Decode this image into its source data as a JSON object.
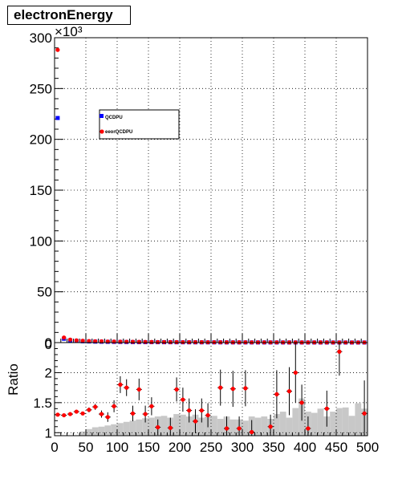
{
  "title": "electronEnergy",
  "colors": {
    "series_a": "#0000ff",
    "series_b": "#ff0000",
    "ratio_points": "#ff0000",
    "ratio_hist": "#c8c8c8",
    "frame": "#000000"
  },
  "chart_data": [
    {
      "type": "scatter",
      "title": "electronEnergy",
      "xlabel": "",
      "ylabel": "",
      "y_multiplier_label": "×10³",
      "xlim": [
        0,
        500
      ],
      "ylim": [
        0,
        300000
      ],
      "y_ticks": [
        0,
        50,
        100,
        150,
        200,
        250,
        300
      ],
      "x_tick_labels_visible": false,
      "grid": true,
      "legend_position": "upper-left",
      "x": [
        5,
        15,
        25,
        35,
        45,
        55,
        65,
        75,
        85,
        95,
        105,
        115,
        125,
        135,
        145,
        155,
        165,
        175,
        185,
        195,
        205,
        215,
        225,
        235,
        245,
        255,
        265,
        275,
        285,
        295,
        305,
        315,
        325,
        335,
        345,
        355,
        365,
        375,
        385,
        395,
        405,
        415,
        425,
        435,
        445,
        455,
        465,
        475,
        485,
        495
      ],
      "series": [
        {
          "name": "QCDPU",
          "color": "#0000ff",
          "values": [
            221000,
            3800,
            2200,
            1600,
            1300,
            1100,
            950,
            850,
            750,
            680,
            620,
            560,
            510,
            470,
            440,
            410,
            380,
            360,
            340,
            320,
            300,
            285,
            270,
            255,
            245,
            235,
            225,
            215,
            205,
            195,
            190,
            180,
            175,
            168,
            160,
            155,
            150,
            145,
            140,
            135,
            130,
            126,
            122,
            118,
            115,
            112,
            109,
            106,
            103,
            100
          ]
        },
        {
          "name": "eeorQCDPU",
          "color": "#ff0000",
          "values": [
            288000,
            5000,
            2900,
            2200,
            1800,
            1500,
            1350,
            1200,
            1050,
            980,
            900,
            820,
            760,
            700,
            650,
            600,
            560,
            530,
            500,
            470,
            440,
            420,
            400,
            380,
            360,
            345,
            330,
            315,
            300,
            285,
            275,
            265,
            255,
            245,
            235,
            228,
            220,
            212,
            205,
            198,
            190,
            184,
            178,
            172,
            166,
            160,
            155,
            150,
            145,
            140
          ]
        }
      ]
    },
    {
      "type": "scatter",
      "title": "",
      "xlabel": "",
      "ylabel": "Ratio",
      "xlim": [
        0,
        500
      ],
      "ylim": [
        0.95,
        2.5
      ],
      "x_ticks": [
        0,
        50,
        100,
        150,
        200,
        250,
        300,
        350,
        400,
        450,
        500
      ],
      "y_ticks": [
        1,
        1.5,
        2
      ],
      "y_tick_labels": [
        "1",
        "1.5",
        "2"
      ],
      "top_tick_label": "0",
      "grid": true,
      "x": [
        5,
        15,
        25,
        35,
        45,
        55,
        65,
        75,
        85,
        95,
        105,
        115,
        125,
        135,
        145,
        155,
        165,
        175,
        185,
        195,
        205,
        215,
        225,
        235,
        245,
        255,
        265,
        275,
        285,
        295,
        305,
        315,
        325,
        335,
        345,
        355,
        365,
        375,
        385,
        395,
        405,
        415,
        425,
        435,
        445,
        455,
        465,
        475,
        485,
        495
      ],
      "series": [
        {
          "name": "",
          "kind": "points",
          "color": "#ff0000",
          "values": [
            1.3,
            1.29,
            1.31,
            1.35,
            1.32,
            1.38,
            1.43,
            1.31,
            1.26,
            1.44,
            1.8,
            1.75,
            1.32,
            1.72,
            1.31,
            1.44,
            1.09,
            null,
            1.08,
            1.72,
            1.55,
            1.37,
            1.19,
            1.37,
            1.29,
            null,
            1.75,
            1.07,
            1.73,
            1.07,
            1.74,
            1.01,
            null,
            null,
            1.1,
            1.64,
            null,
            1.69,
            2.0,
            1.5,
            1.07,
            null,
            null,
            1.4,
            null,
            2.35,
            null,
            null,
            null,
            1.32
          ],
          "errors": [
            0.02,
            0.02,
            0.02,
            0.03,
            0.03,
            0.04,
            0.05,
            0.06,
            0.08,
            0.1,
            0.14,
            0.14,
            0.13,
            0.18,
            0.14,
            0.15,
            0.13,
            null,
            0.17,
            0.2,
            0.2,
            0.2,
            0.2,
            0.2,
            0.2,
            null,
            0.3,
            0.2,
            0.3,
            0.2,
            0.3,
            0.2,
            null,
            null,
            0.2,
            0.4,
            null,
            0.4,
            0.5,
            0.3,
            0.2,
            null,
            null,
            0.3,
            null,
            0.4,
            null,
            null,
            null,
            0.55
          ]
        },
        {
          "name": "",
          "kind": "histogram",
          "color": "#c8c8c8",
          "values": [
            0.95,
            0.95,
            0.95,
            0.95,
            1.02,
            1.06,
            1.09,
            1.1,
            1.12,
            1.14,
            1.16,
            1.18,
            1.2,
            1.22,
            1.24,
            1.25,
            1.27,
            1.28,
            1.25,
            1.31,
            1.3,
            1.27,
            1.3,
            1.25,
            1.27,
            1.28,
            1.23,
            1.27,
            1.22,
            1.22,
            1.2,
            1.27,
            1.25,
            1.27,
            1.23,
            1.31,
            1.35,
            1.25,
            1.41,
            1.57,
            1.35,
            1.33,
            1.4,
            1.27,
            1.35,
            1.41,
            1.42,
            1.28,
            1.49,
            1.4
          ]
        }
      ]
    }
  ]
}
